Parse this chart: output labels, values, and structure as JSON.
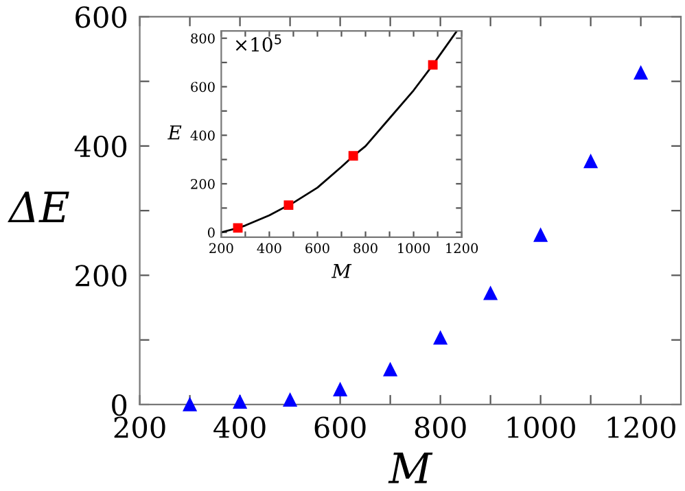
{
  "chart_data": [
    {
      "type": "scatter",
      "xlabel": "M",
      "ylabel": "ΔE",
      "marker": "triangle",
      "grid": false,
      "x": [
        300,
        400,
        500,
        600,
        700,
        800,
        900,
        1000,
        1100,
        1200
      ],
      "series": [
        {
          "color": "#0000ff",
          "values": [
            0,
            4,
            7,
            23,
            54,
            103,
            172,
            262,
            376,
            513
          ]
        }
      ],
      "xlim": [
        200,
        1280
      ],
      "xticks": [
        200,
        {
          "value": 300,
          "label": null
        },
        400,
        {
          "value": 500,
          "label": null
        },
        600,
        {
          "value": 700,
          "label": null
        },
        800,
        {
          "value": 900,
          "label": null
        },
        1000,
        {
          "value": 1100,
          "label": null
        },
        1200
      ],
      "ylim": [
        0,
        600
      ],
      "yticks": [
        0,
        {
          "value": 100,
          "label": null
        },
        200,
        {
          "value": 300,
          "label": null
        },
        400,
        {
          "value": 500,
          "label": null
        },
        600
      ]
    },
    {
      "type": "scatter",
      "xlabel": "M",
      "ylabel": "E",
      "grid": false,
      "annotations": [
        "×10$^{5}$"
      ],
      "series": [
        {
          "type": "line",
          "color": "#000000",
          "marker": "none",
          "x": [
            200,
            270,
            300,
            400,
            480,
            500,
            600,
            700,
            750,
            800,
            900,
            1000,
            1080,
            1180
          ],
          "values": [
            0,
            18,
            28,
            70,
            112,
            122,
            184,
            270,
            315,
            355,
            470,
            585,
            690,
            830
          ]
        },
        {
          "type": "scatter",
          "color": "#ff0000",
          "marker": "square",
          "x": [
            269,
            480,
            749,
            1080
          ],
          "values": [
            18,
            112,
            315,
            690
          ]
        }
      ],
      "xlim": [
        200,
        1200
      ],
      "xticks": [
        200,
        {
          "value": 300,
          "label": null
        },
        400,
        {
          "value": 500,
          "label": null
        },
        600,
        {
          "value": 700,
          "label": null
        },
        800,
        {
          "value": 900,
          "label": null
        },
        1000,
        {
          "value": 1100,
          "label": null
        },
        1200
      ],
      "ylim": [
        -20,
        830
      ],
      "yticks": [
        0,
        {
          "value": 100,
          "label": null
        },
        200,
        {
          "value": 300,
          "label": null
        },
        400,
        {
          "value": 500,
          "label": null
        },
        600,
        {
          "value": 700,
          "label": null
        },
        800
      ]
    }
  ]
}
